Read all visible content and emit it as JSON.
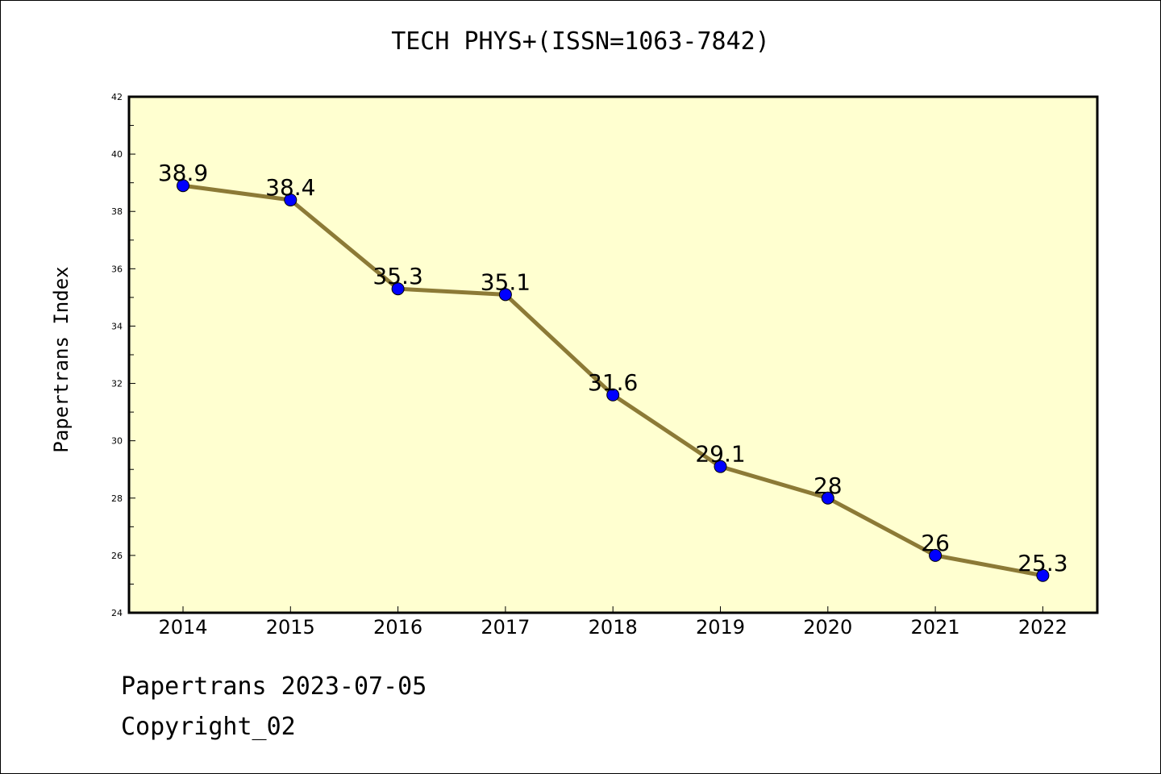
{
  "chart_data": {
    "type": "line",
    "title": "TECH PHYS+(ISSN=1063-7842)",
    "xlabel": "",
    "ylabel": "Papertrans Index",
    "x": [
      "2014",
      "2015",
      "2016",
      "2017",
      "2018",
      "2019",
      "2020",
      "2021",
      "2022"
    ],
    "series": [
      {
        "values": [
          38.9,
          38.4,
          35.3,
          35.1,
          31.6,
          29.1,
          28,
          26,
          25.3
        ],
        "data_labels": [
          "38.9",
          "38.4",
          "35.3",
          "35.1",
          "31.6",
          "29.1",
          "28",
          "26",
          "25.3"
        ]
      }
    ],
    "ylim": [
      24,
      42
    ],
    "yticks": [
      24,
      26,
      28,
      30,
      32,
      34,
      36,
      38,
      40,
      42
    ],
    "grid": false,
    "legend": "none",
    "colors": {
      "plot_background": "#ffffd0",
      "line": "#8c7a36",
      "marker": "#0000ff"
    }
  },
  "footer": {
    "line1": "Papertrans 2023-07-05",
    "line2": "Copyright_02"
  }
}
